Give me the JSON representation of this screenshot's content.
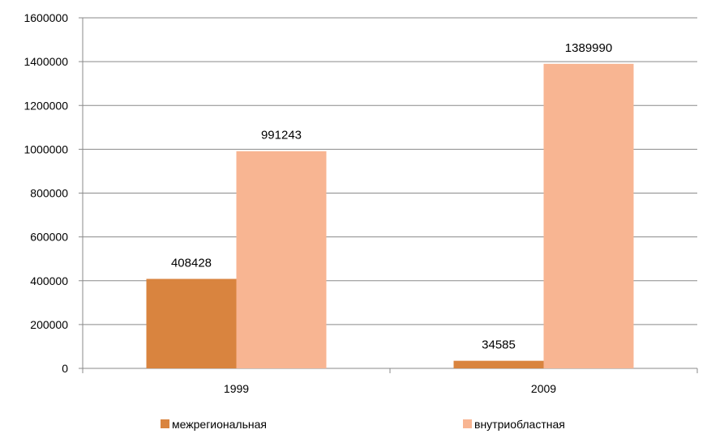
{
  "chart_data": {
    "type": "bar",
    "categories": [
      "1999",
      "2009"
    ],
    "series": [
      {
        "name": "межрегиональная",
        "values": [
          408428,
          34585
        ],
        "color": "#D9843F"
      },
      {
        "name": "внутриобластная",
        "values": [
          991243,
          1389990
        ],
        "color": "#F8B592"
      }
    ],
    "ylim": [
      0,
      1600000
    ],
    "yticks": [
      "0",
      "200000",
      "400000",
      "600000",
      "800000",
      "1000000",
      "1200000",
      "1400000",
      "1600000"
    ],
    "data_labels": [
      [
        "408428",
        "34585"
      ],
      [
        "991243",
        "1389990"
      ]
    ],
    "grid": true,
    "legend": "bottom"
  }
}
